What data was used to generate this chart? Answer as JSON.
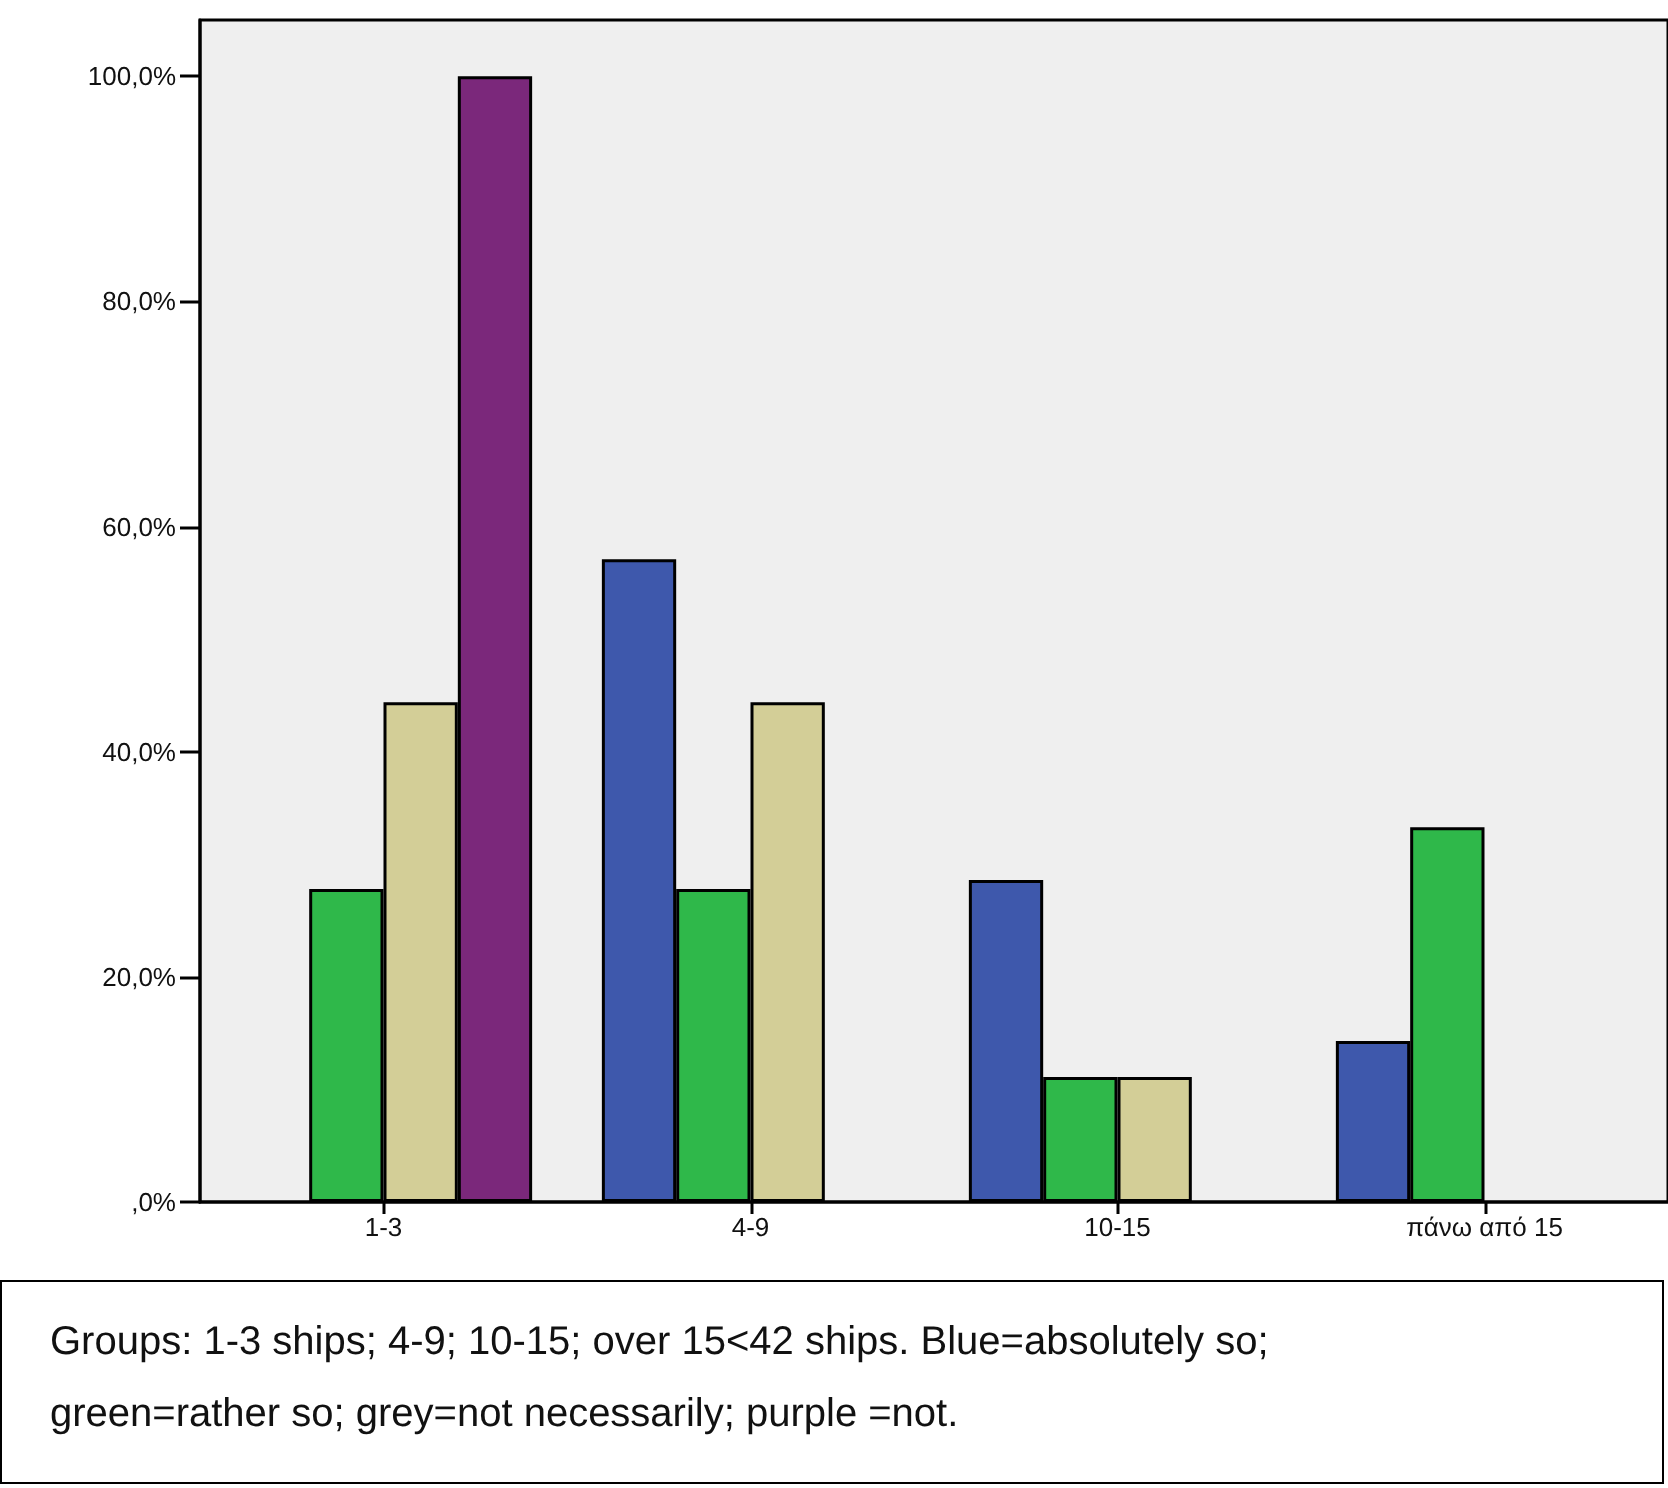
{
  "chart_data": {
    "type": "bar",
    "categories": [
      "1-3",
      "4-9",
      "10-15",
      "πάνω από 15"
    ],
    "series": [
      {
        "color": "#3e58ac",
        "values": [
          null,
          57.1,
          28.6,
          14.3
        ]
      },
      {
        "color": "#2fb84a",
        "values": [
          27.8,
          27.8,
          11.1,
          33.3
        ]
      },
      {
        "color": "#d3ce97",
        "values": [
          44.4,
          44.4,
          11.1,
          null
        ]
      },
      {
        "color": "#7b287b",
        "values": [
          100,
          null,
          null,
          null
        ]
      }
    ],
    "ylim": [
      0,
      105
    ],
    "yticks": [
      {
        "value": 0,
        "label": ",0%"
      },
      {
        "value": 20,
        "label": "20,0%"
      },
      {
        "value": 40,
        "label": "40,0%"
      },
      {
        "value": 60,
        "label": "60,0%"
      },
      {
        "value": 80,
        "label": "80,0%"
      },
      {
        "value": 100,
        "label": "100,0%"
      }
    ],
    "grid": false,
    "annotations": [
      "Groups: 1-3 ships; 4-9; 10-15; over 15<42 ships. Blue=absolutely so; green=rather so; grey=not necessarily; purple =not."
    ]
  }
}
